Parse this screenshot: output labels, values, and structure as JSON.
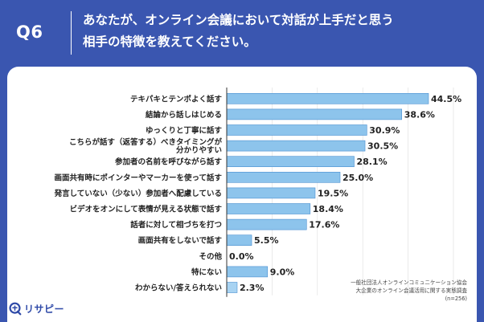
{
  "header": {
    "q_label": "Q6",
    "question": "あなたが、オンライン会議において対話が上手だと思う\n相手の特徴を教えてください。"
  },
  "source": {
    "line1": "一般社団法人オンラインコミュニケーション協会",
    "line2": "大企業のオンライン会議活用に関する実態調査",
    "line3": "(n=256)"
  },
  "logo": {
    "text": "リサピー"
  },
  "colors": {
    "background": "#3a56b0",
    "bar_fill": "#8dc4ec",
    "bar_last": "#a8d3f2",
    "bar_stroke": "#4a8fd0",
    "axis": "#333333",
    "grid": "#dddddd"
  },
  "chart_data": {
    "type": "bar",
    "orientation": "horizontal",
    "title": "",
    "xlim": [
      0,
      50
    ],
    "categories": [
      "テキパキとテンポよく話す",
      "結論から話しはじめる",
      "ゆっくりと丁寧に話す",
      "こちらが話す（返答する）べきタイミングが\n分かりやすい",
      "参加者の名前を呼びながら話す",
      "画面共有時にポインターやマーカーを使って話す",
      "発言していない（少ない）参加者へ配慮している",
      "ビデオをオンにして表情が見える状態で話す",
      "話者に対して相づちを打つ",
      "画面共有をしないで話す",
      "その他",
      "特にない",
      "わからない/答えられない"
    ],
    "values": [
      44.5,
      38.6,
      30.9,
      30.5,
      28.1,
      25.0,
      19.5,
      18.4,
      17.6,
      5.5,
      0.0,
      9.0,
      2.3
    ],
    "value_labels": [
      "44.5%",
      "38.6%",
      "30.9%",
      "30.5%",
      "28.1%",
      "25.0%",
      "19.5%",
      "18.4%",
      "17.6%",
      "5.5%",
      "0.0%",
      "9.0%",
      "2.3%"
    ]
  }
}
